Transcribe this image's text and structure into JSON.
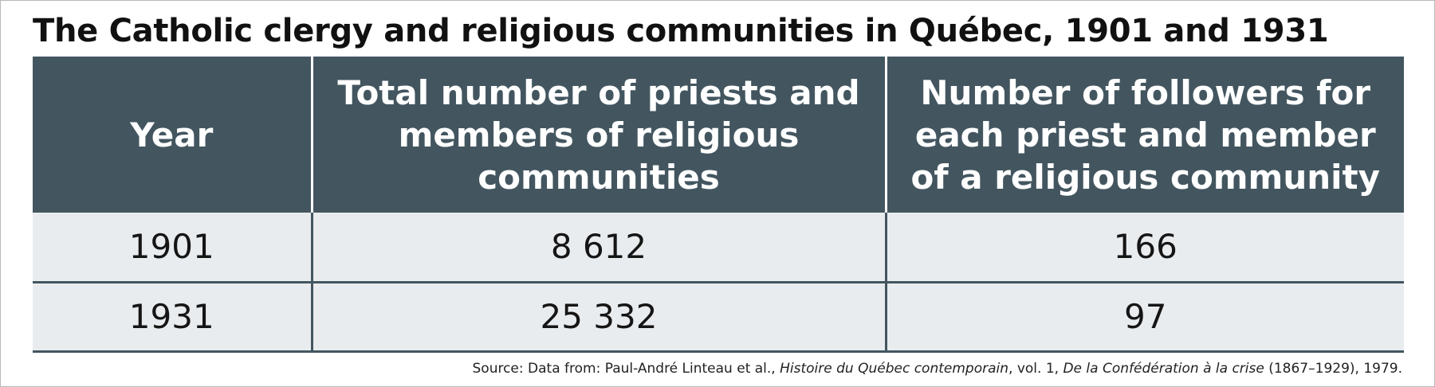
{
  "title": "The Catholic clergy and religious communities in Québec, 1901 and 1931",
  "table": {
    "headers": [
      "Year",
      "Total number of priests and members of religious communities",
      "Number of followers for each priest and member of a religious community"
    ],
    "rows": [
      [
        "1901",
        "8 612",
        "166"
      ],
      [
        "1931",
        "25 332",
        "97"
      ]
    ]
  },
  "source": {
    "prefix": "Source: Data from: Paul-André Linteau et al., ",
    "book_title": "Histoire du Québec contemporain",
    "volume": ", vol. 1, ",
    "volume_title": "De la Confédération à la crise",
    "suffix": " (1867–1929), 1979."
  },
  "colors": {
    "header_bg": "#435660",
    "header_text": "#ffffff",
    "cell_bg": "#e9ecee",
    "rule": "#435660"
  }
}
